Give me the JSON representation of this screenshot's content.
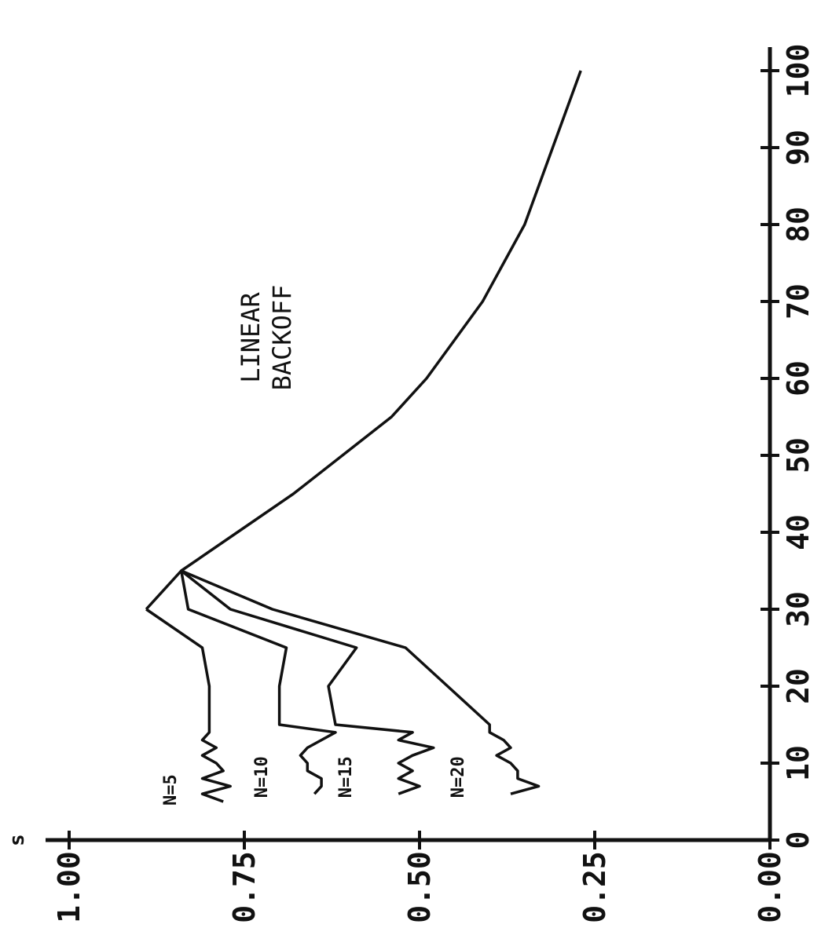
{
  "chart_data": {
    "type": "line",
    "title": "LINEAR BACKOFF",
    "title_lines": [
      "LINEAR",
      "BACKOFF"
    ],
    "xlabel": "",
    "ylabel": "s",
    "xlim": [
      0,
      100
    ],
    "ylim": [
      0,
      1
    ],
    "xticks": [
      0,
      10,
      20,
      30,
      40,
      50,
      60,
      70,
      80,
      90,
      100
    ],
    "yticks": [
      "0.00",
      "0.25",
      "0.50",
      "0.75",
      "1.00"
    ],
    "grid": false,
    "series": [
      {
        "name": "N=5",
        "x": [
          5,
          6,
          7,
          8,
          9,
          10,
          11,
          12,
          13,
          14,
          15,
          20,
          25,
          30
        ],
        "y": [
          0.78,
          0.81,
          0.77,
          0.81,
          0.78,
          0.79,
          0.81,
          0.79,
          0.81,
          0.8,
          0.8,
          0.8,
          0.81,
          0.89
        ]
      },
      {
        "name": "N=10",
        "x": [
          6,
          7,
          8,
          9,
          10,
          11,
          12,
          13,
          14,
          15,
          20,
          25,
          30,
          35
        ],
        "y": [
          0.65,
          0.64,
          0.64,
          0.66,
          0.66,
          0.67,
          0.66,
          0.64,
          0.62,
          0.7,
          0.7,
          0.69,
          0.83,
          0.84
        ]
      },
      {
        "name": "N=15",
        "x": [
          6,
          7,
          8,
          9,
          10,
          11,
          12,
          13,
          14,
          15,
          20,
          25,
          30,
          35
        ],
        "y": [
          0.53,
          0.5,
          0.53,
          0.51,
          0.53,
          0.51,
          0.48,
          0.53,
          0.51,
          0.62,
          0.63,
          0.59,
          0.77,
          0.84
        ]
      },
      {
        "name": "N=20",
        "x": [
          6,
          7,
          8,
          9,
          10,
          11,
          12,
          13,
          14,
          15,
          20,
          25,
          30,
          35
        ],
        "y": [
          0.37,
          0.33,
          0.36,
          0.36,
          0.37,
          0.39,
          0.37,
          0.38,
          0.4,
          0.4,
          0.46,
          0.52,
          0.71,
          0.84
        ]
      },
      {
        "name": "",
        "x": [
          30,
          35,
          40,
          45,
          50,
          55,
          60,
          70,
          80,
          90,
          100
        ],
        "y": [
          0.89,
          0.84,
          0.76,
          0.68,
          0.61,
          0.54,
          0.49,
          0.41,
          0.35,
          0.31,
          0.27
        ]
      }
    ],
    "series_labels": [
      "N=5",
      "N=10",
      "N=15",
      "N=20"
    ]
  }
}
